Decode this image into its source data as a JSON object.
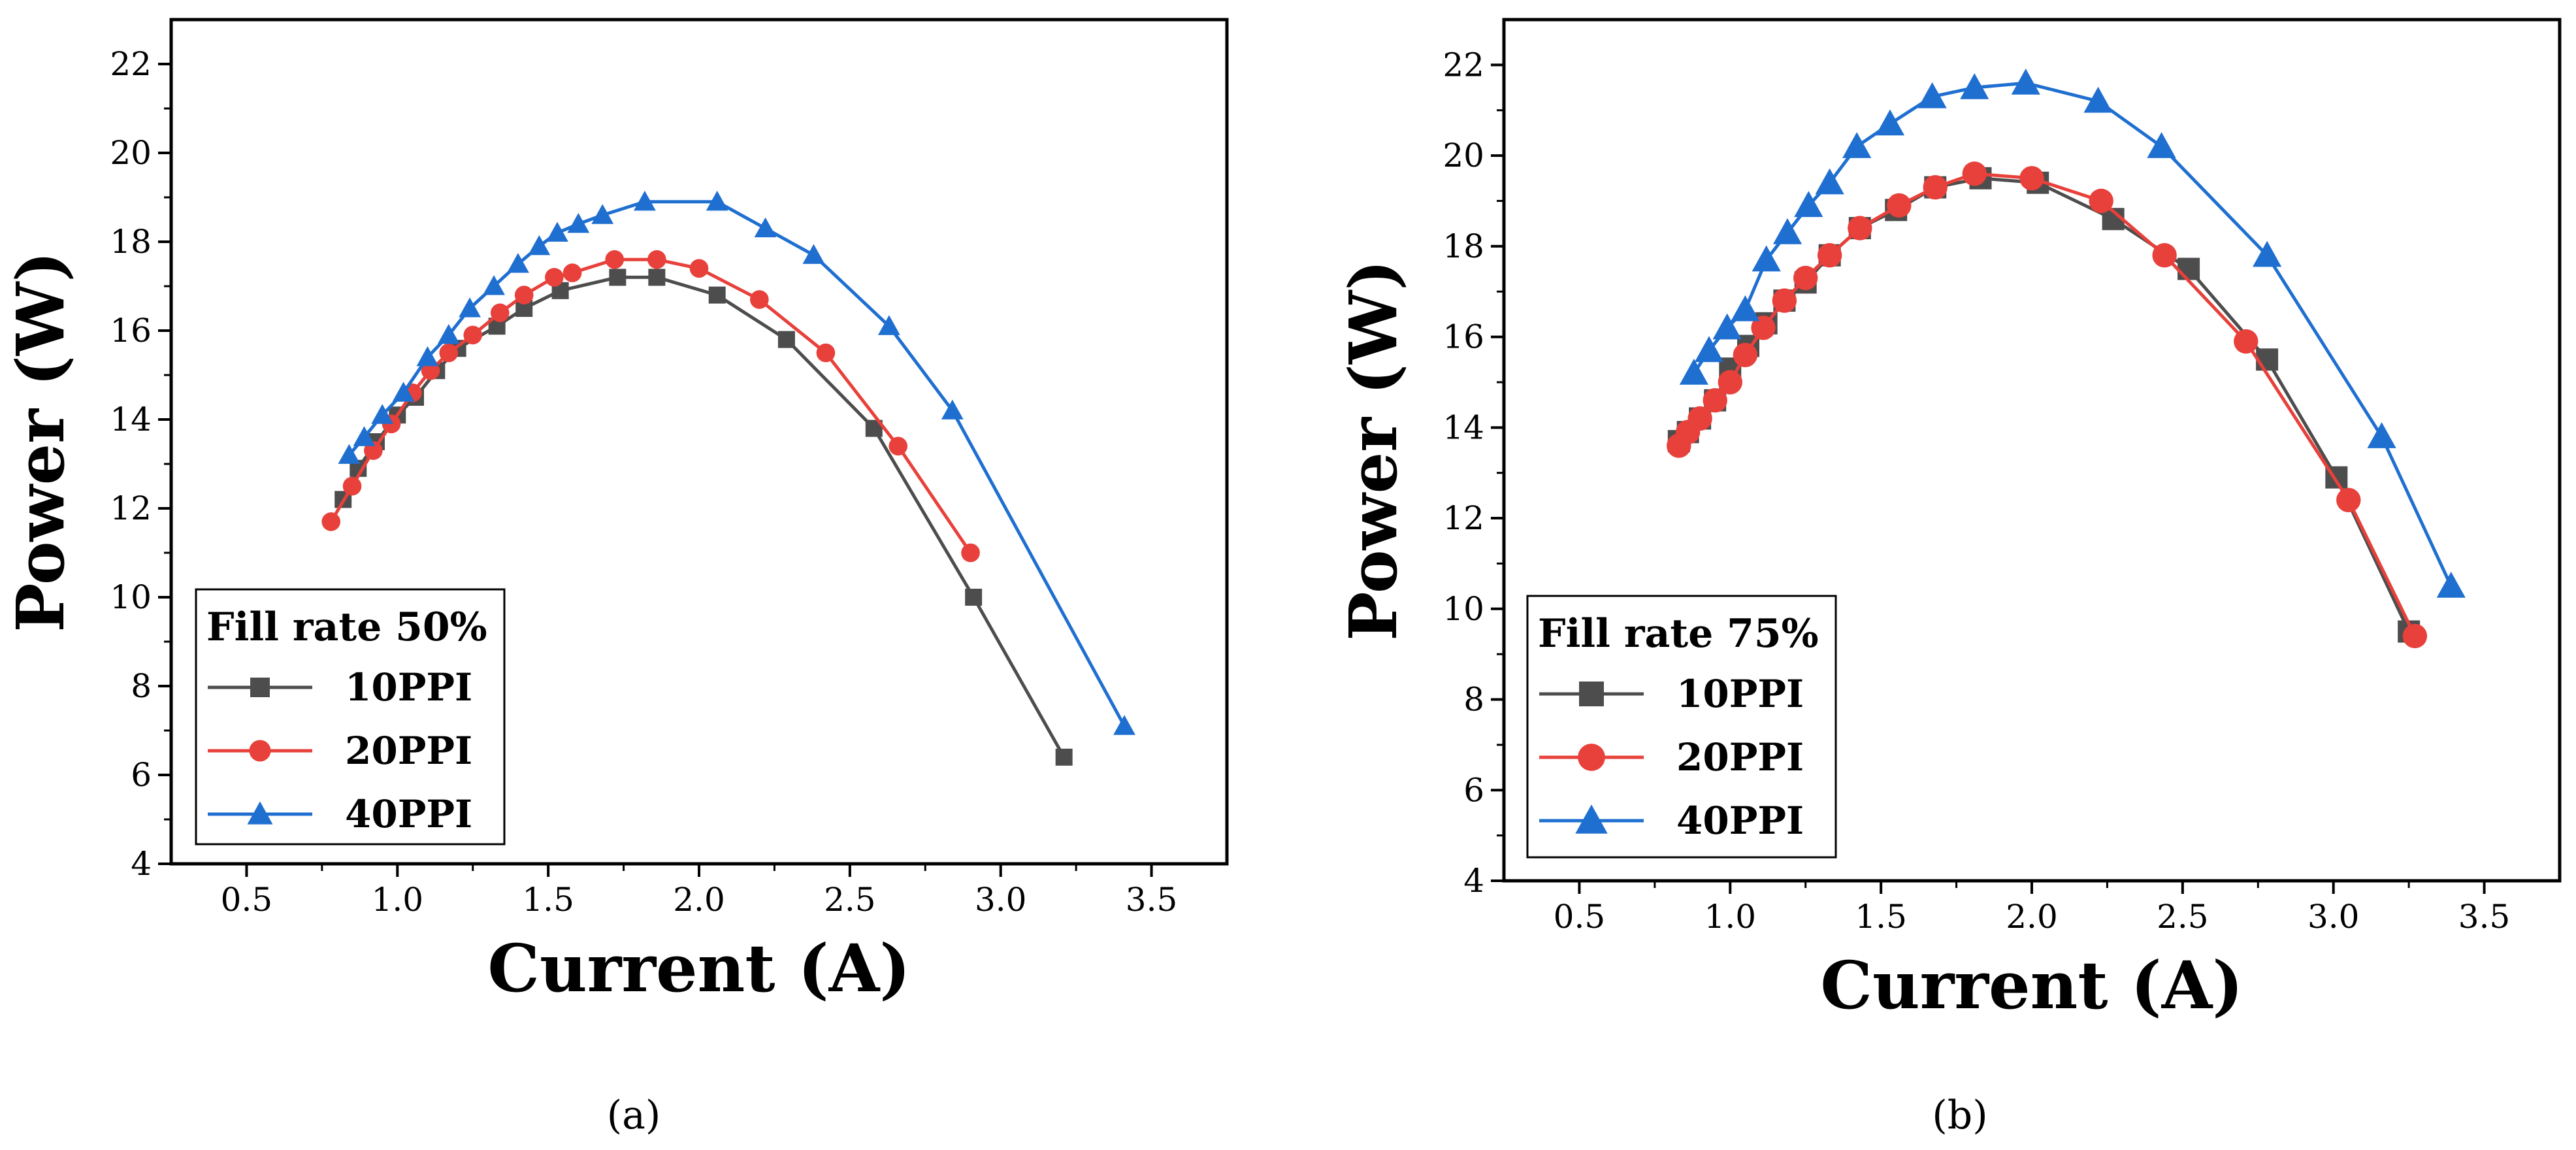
{
  "chart_data": [
    {
      "type": "line",
      "caption": "(a)",
      "xlabel": "Current (A)",
      "ylabel": "Power (W)",
      "xlim": [
        0.25,
        3.75
      ],
      "ylim": [
        4,
        23
      ],
      "xticks": [
        0.5,
        1.0,
        1.5,
        2.0,
        2.5,
        3.0,
        3.5
      ],
      "xtick_labels": [
        "0.5",
        "1.0",
        "1.5",
        "2.0",
        "2.5",
        "3.0",
        "3.5"
      ],
      "yticks": [
        4,
        6,
        8,
        10,
        12,
        14,
        16,
        18,
        20,
        22
      ],
      "ytick_labels": [
        "4",
        "6",
        "8",
        "10",
        "12",
        "14",
        "16",
        "18",
        "20",
        "22"
      ],
      "legend_title": "Fill rate 50%",
      "legend_position": "bottom-left",
      "series": [
        {
          "name": "10PPI",
          "color": "#4d4d4d",
          "marker": "square",
          "x": [
            0.82,
            0.87,
            0.93,
            1.0,
            1.06,
            1.13,
            1.2,
            1.33,
            1.42,
            1.54,
            1.73,
            1.86,
            2.06,
            2.29,
            2.58,
            2.91,
            3.21
          ],
          "y": [
            12.2,
            12.9,
            13.5,
            14.1,
            14.5,
            15.1,
            15.6,
            16.1,
            16.5,
            16.9,
            17.2,
            17.2,
            16.8,
            15.8,
            13.8,
            10.0,
            6.4
          ]
        },
        {
          "name": "20PPI",
          "color": "#e8403a",
          "marker": "circle",
          "x": [
            0.78,
            0.85,
            0.92,
            0.98,
            1.05,
            1.11,
            1.17,
            1.25,
            1.34,
            1.42,
            1.52,
            1.58,
            1.72,
            1.86,
            2.0,
            2.2,
            2.42,
            2.66,
            2.9
          ],
          "y": [
            11.7,
            12.5,
            13.3,
            13.9,
            14.6,
            15.1,
            15.5,
            15.9,
            16.4,
            16.8,
            17.2,
            17.3,
            17.6,
            17.6,
            17.4,
            16.7,
            15.5,
            13.4,
            11.0
          ]
        },
        {
          "name": "40PPI",
          "color": "#1f6fd1",
          "marker": "triangle",
          "x": [
            0.84,
            0.89,
            0.95,
            1.02,
            1.1,
            1.17,
            1.24,
            1.32,
            1.4,
            1.47,
            1.53,
            1.6,
            1.68,
            1.82,
            2.06,
            2.22,
            2.38,
            2.63,
            2.84,
            3.41
          ],
          "y": [
            13.2,
            13.6,
            14.1,
            14.6,
            15.4,
            15.9,
            16.5,
            17.0,
            17.5,
            17.9,
            18.2,
            18.4,
            18.6,
            18.9,
            18.9,
            18.3,
            17.7,
            16.1,
            14.2,
            7.1
          ]
        }
      ]
    },
    {
      "type": "line",
      "caption": "(b)",
      "xlabel": "Current (A)",
      "ylabel": "Power (W)",
      "xlim": [
        0.25,
        3.75
      ],
      "ylim": [
        4,
        23
      ],
      "xticks": [
        0.5,
        1.0,
        1.5,
        2.0,
        2.5,
        3.0,
        3.5
      ],
      "xtick_labels": [
        "0.5",
        "1.0",
        "1.5",
        "2.0",
        "2.5",
        "3.0",
        "3.5"
      ],
      "yticks": [
        4,
        6,
        8,
        10,
        12,
        14,
        16,
        18,
        20,
        22
      ],
      "ytick_labels": [
        "4",
        "6",
        "8",
        "10",
        "12",
        "14",
        "16",
        "18",
        "20",
        "22"
      ],
      "legend_title": "Fill rate 75%",
      "legend_position": "bottom-left",
      "series": [
        {
          "name": "10PPI",
          "color": "#4d4d4d",
          "marker": "square",
          "x": [
            0.83,
            0.86,
            0.9,
            0.95,
            1.0,
            1.06,
            1.12,
            1.18,
            1.25,
            1.33,
            1.43,
            1.55,
            1.68,
            1.83,
            2.02,
            2.27,
            2.52,
            2.78,
            3.01,
            3.25
          ],
          "y": [
            13.7,
            13.9,
            14.2,
            14.6,
            15.3,
            15.8,
            16.3,
            16.8,
            17.2,
            17.8,
            18.4,
            18.8,
            19.3,
            19.5,
            19.4,
            18.6,
            17.5,
            15.5,
            12.9,
            9.5
          ]
        },
        {
          "name": "20PPI",
          "color": "#e8403a",
          "marker": "circle",
          "x": [
            0.83,
            0.86,
            0.9,
            0.95,
            1.0,
            1.05,
            1.11,
            1.18,
            1.25,
            1.33,
            1.43,
            1.56,
            1.68,
            1.81,
            2.0,
            2.23,
            2.44,
            2.71,
            3.05,
            3.27
          ],
          "y": [
            13.6,
            13.9,
            14.2,
            14.6,
            15.0,
            15.6,
            16.2,
            16.8,
            17.3,
            17.8,
            18.4,
            18.9,
            19.3,
            19.6,
            19.5,
            19.0,
            17.8,
            15.9,
            12.4,
            9.4
          ]
        },
        {
          "name": "40PPI",
          "color": "#1f6fd1",
          "marker": "triangle",
          "x": [
            0.88,
            0.93,
            0.99,
            1.05,
            1.12,
            1.19,
            1.26,
            1.33,
            1.42,
            1.53,
            1.67,
            1.81,
            1.98,
            2.22,
            2.43,
            2.78,
            3.16,
            3.39
          ],
          "y": [
            15.2,
            15.7,
            16.2,
            16.6,
            17.7,
            18.3,
            18.9,
            19.4,
            20.2,
            20.7,
            21.3,
            21.5,
            21.6,
            21.2,
            20.2,
            17.8,
            13.8,
            10.5
          ]
        }
      ]
    }
  ]
}
